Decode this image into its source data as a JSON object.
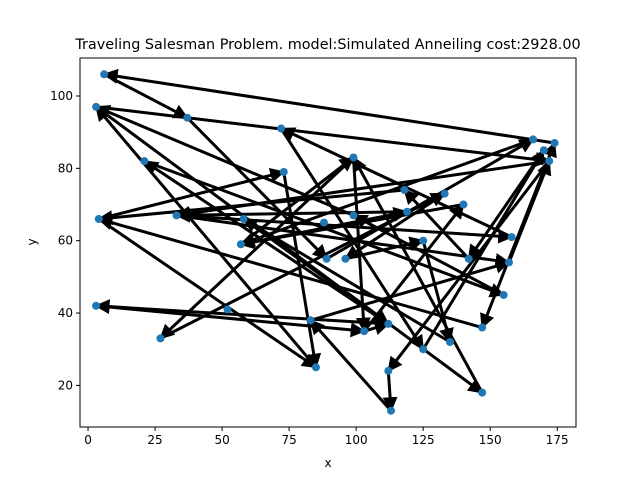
{
  "chart_data": {
    "type": "scatter",
    "title": "Traveling Salesman Problem. model:Simulated Anneiling  cost:2928.00",
    "xlabel": "x",
    "ylabel": "y",
    "xlim": [
      -3,
      182
    ],
    "ylim": [
      8.5,
      110.5
    ],
    "xticks": [
      0,
      25,
      50,
      75,
      100,
      125,
      150,
      175
    ],
    "yticks": [
      20,
      40,
      60,
      80,
      100
    ],
    "grid": false,
    "point_color": "#1f77b4",
    "path_color": "#000000",
    "points": [
      [
        6,
        106
      ],
      [
        3,
        97
      ],
      [
        37,
        94
      ],
      [
        21,
        82
      ],
      [
        72,
        91
      ],
      [
        99,
        83
      ],
      [
        73,
        79
      ],
      [
        4,
        66
      ],
      [
        33,
        67
      ],
      [
        58,
        66
      ],
      [
        57,
        59
      ],
      [
        88,
        65
      ],
      [
        99,
        67
      ],
      [
        118,
        74
      ],
      [
        133,
        73
      ],
      [
        140,
        70
      ],
      [
        119,
        68
      ],
      [
        125,
        60
      ],
      [
        89,
        55
      ],
      [
        96,
        55
      ],
      [
        142,
        55
      ],
      [
        158,
        61
      ],
      [
        157,
        54
      ],
      [
        166,
        88
      ],
      [
        170,
        85
      ],
      [
        172,
        82
      ],
      [
        174,
        87
      ],
      [
        155,
        45
      ],
      [
        3,
        42
      ],
      [
        27,
        33
      ],
      [
        52,
        41
      ],
      [
        83,
        38
      ],
      [
        103,
        35
      ],
      [
        112,
        37
      ],
      [
        85,
        25
      ],
      [
        125,
        30
      ],
      [
        135,
        32
      ],
      [
        147,
        36
      ],
      [
        147,
        18
      ],
      [
        112,
        24
      ],
      [
        113,
        13
      ]
    ],
    "tour": [
      [
        174,
        87
      ],
      [
        6,
        106
      ],
      [
        37,
        94
      ],
      [
        89,
        55
      ],
      [
        166,
        88
      ],
      [
        57,
        59
      ],
      [
        99,
        83
      ],
      [
        103,
        35
      ],
      [
        112,
        37
      ],
      [
        21,
        82
      ],
      [
        155,
        45
      ],
      [
        99,
        67
      ],
      [
        3,
        97
      ],
      [
        172,
        82
      ],
      [
        33,
        67
      ],
      [
        158,
        61
      ],
      [
        72,
        91
      ],
      [
        125,
        30
      ],
      [
        170,
        85
      ],
      [
        142,
        55
      ],
      [
        118,
        74
      ],
      [
        4,
        66
      ],
      [
        73,
        79
      ],
      [
        85,
        25
      ],
      [
        3,
        97
      ],
      [
        147,
        18
      ],
      [
        99,
        83
      ],
      [
        27,
        33
      ],
      [
        133,
        73
      ],
      [
        96,
        55
      ],
      [
        125,
        60
      ],
      [
        135,
        32
      ],
      [
        58,
        66
      ],
      [
        112,
        37
      ],
      [
        3,
        42
      ],
      [
        103,
        35
      ],
      [
        140,
        70
      ],
      [
        57,
        59
      ],
      [
        119,
        68
      ],
      [
        33,
        67
      ],
      [
        157,
        54
      ],
      [
        172,
        82
      ],
      [
        112,
        24
      ],
      [
        113,
        13
      ],
      [
        83,
        38
      ],
      [
        157,
        54
      ],
      [
        174,
        87
      ],
      [
        147,
        36
      ],
      [
        4,
        66
      ],
      [
        85,
        25
      ]
    ]
  }
}
